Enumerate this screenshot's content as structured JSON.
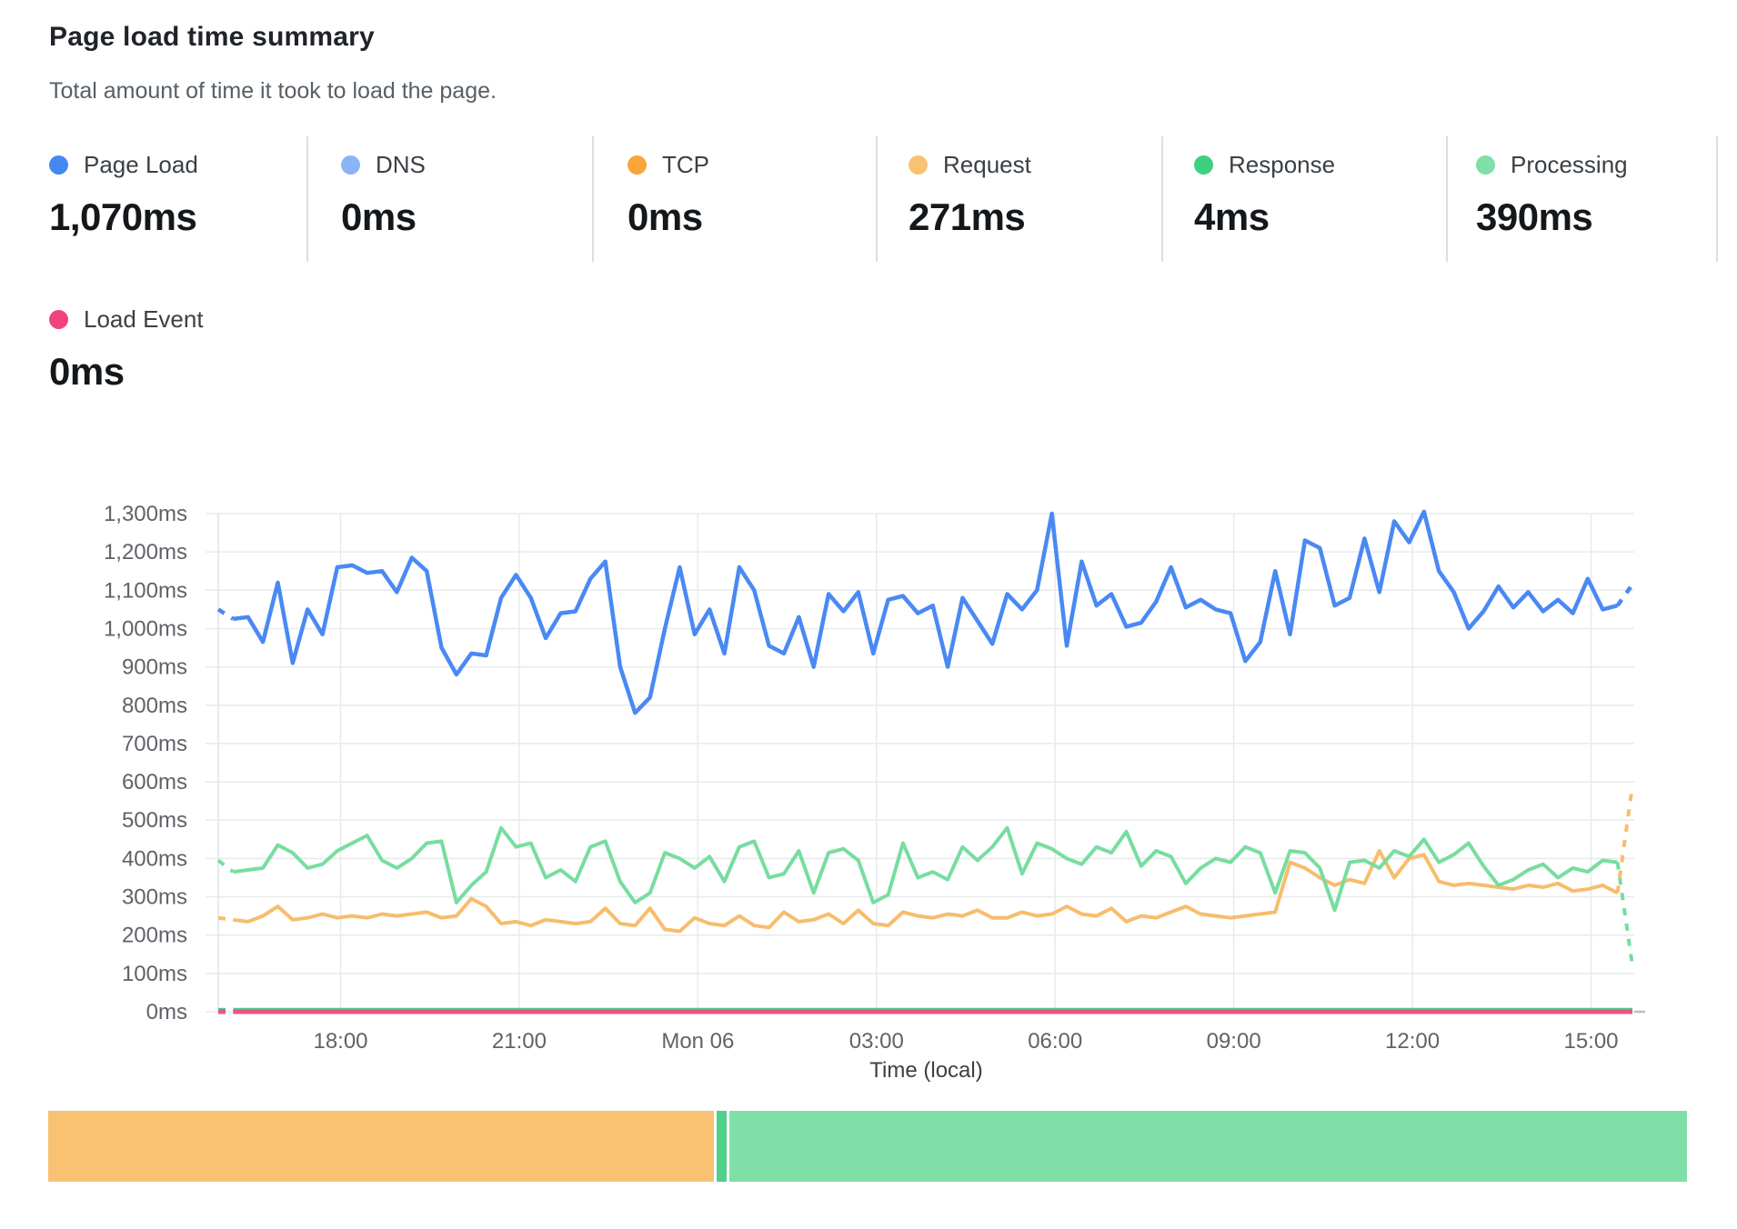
{
  "header": {
    "title": "Page load time summary",
    "subtitle": "Total amount of time it took to load the page."
  },
  "stats": [
    {
      "id": "page_load",
      "label": "Page Load",
      "value": "1,070ms",
      "color": "#4688F1"
    },
    {
      "id": "dns",
      "label": "DNS",
      "value": "0ms",
      "color": "#8AB4F8"
    },
    {
      "id": "tcp",
      "label": "TCP",
      "value": "0ms",
      "color": "#F9A53C"
    },
    {
      "id": "request",
      "label": "Request",
      "value": "271ms",
      "color": "#F8C272"
    },
    {
      "id": "response",
      "label": "Response",
      "value": "4ms",
      "color": "#3DD17F"
    },
    {
      "id": "processing",
      "label": "Processing",
      "value": "390ms",
      "color": "#7FDFA6"
    },
    {
      "id": "load_event",
      "label": "Load Event",
      "value": "0ms",
      "color": "#F2437F"
    }
  ],
  "chart_data": {
    "type": "line",
    "title": "Page load time summary",
    "xlabel": "Time (local)",
    "ylabel": "",
    "ylim": [
      0,
      1300
    ],
    "grid": true,
    "legend_position": "top-stats-row",
    "points": 96,
    "y_ticks": [
      "0ms",
      "100ms",
      "200ms",
      "300ms",
      "400ms",
      "500ms",
      "600ms",
      "700ms",
      "800ms",
      "900ms",
      "1,000ms",
      "1,100ms",
      "1,200ms",
      "1,300ms"
    ],
    "x_ticks": [
      "18:00",
      "21:00",
      "Mon 06",
      "03:00",
      "06:00",
      "09:00",
      "12:00",
      "15:00"
    ],
    "series": [
      {
        "id": "dns",
        "name": "DNS",
        "color": "#8AB4F8",
        "width": 4,
        "flat_value": 0,
        "dashed_head": true,
        "dashed_tail": false
      },
      {
        "id": "tcp",
        "name": "TCP",
        "color": "#F9A53C",
        "width": 4,
        "flat_value": 0,
        "dashed_head": true,
        "dashed_tail": false
      },
      {
        "id": "response",
        "name": "Response",
        "color": "#47D086",
        "width": 5,
        "flat_value": 4,
        "dashed_head": true,
        "dashed_tail": false
      },
      {
        "id": "load_event",
        "name": "Load Event",
        "color": "#E95489",
        "width": 5,
        "flat_value": 0,
        "dashed_head": true,
        "dashed_tail": false
      },
      {
        "id": "request",
        "name": "Request",
        "color": "#F7BD6C",
        "width": 4,
        "dashed_head": true,
        "dashed_tail": true,
        "values": [
          245,
          240,
          235,
          250,
          275,
          240,
          245,
          255,
          245,
          250,
          245,
          255,
          250,
          255,
          260,
          245,
          250,
          295,
          275,
          230,
          235,
          225,
          240,
          235,
          230,
          235,
          270,
          230,
          225,
          270,
          215,
          210,
          245,
          230,
          225,
          250,
          225,
          220,
          260,
          235,
          240,
          255,
          230,
          265,
          230,
          225,
          260,
          250,
          245,
          255,
          250,
          265,
          245,
          245,
          260,
          250,
          255,
          275,
          255,
          250,
          270,
          235,
          250,
          245,
          260,
          275,
          255,
          250,
          245,
          250,
          255,
          260,
          390,
          375,
          350,
          330,
          345,
          335,
          420,
          350,
          400,
          410,
          340,
          330,
          335,
          330,
          325,
          320,
          330,
          325,
          335,
          315,
          320,
          330,
          310,
          590
        ]
      },
      {
        "id": "processing",
        "name": "Processing",
        "color": "#77DDA0",
        "width": 4,
        "dashed_head": true,
        "dashed_tail": true,
        "values": [
          395,
          365,
          370,
          375,
          435,
          415,
          375,
          385,
          420,
          440,
          460,
          395,
          375,
          400,
          440,
          445,
          285,
          330,
          365,
          480,
          430,
          440,
          350,
          370,
          340,
          430,
          445,
          340,
          285,
          310,
          415,
          400,
          375,
          405,
          340,
          430,
          445,
          350,
          360,
          420,
          310,
          415,
          425,
          395,
          285,
          305,
          440,
          350,
          365,
          345,
          430,
          395,
          430,
          480,
          360,
          440,
          425,
          400,
          385,
          430,
          415,
          470,
          380,
          420,
          405,
          335,
          375,
          400,
          390,
          430,
          415,
          310,
          420,
          415,
          375,
          265,
          390,
          395,
          375,
          420,
          405,
          450,
          390,
          410,
          440,
          380,
          330,
          345,
          370,
          385,
          350,
          375,
          365,
          395,
          390,
          120
        ]
      },
      {
        "id": "page_load",
        "name": "Page Load",
        "color": "#4A89F3",
        "width": 4.5,
        "dashed_head": true,
        "dashed_tail": true,
        "values": [
          1050,
          1025,
          1030,
          965,
          1120,
          910,
          1050,
          985,
          1160,
          1165,
          1145,
          1150,
          1095,
          1185,
          1150,
          950,
          880,
          935,
          930,
          1080,
          1140,
          1080,
          975,
          1040,
          1045,
          1130,
          1175,
          900,
          780,
          820,
          1000,
          1160,
          985,
          1050,
          935,
          1160,
          1100,
          955,
          935,
          1030,
          900,
          1090,
          1045,
          1095,
          935,
          1075,
          1085,
          1040,
          1060,
          900,
          1080,
          1020,
          960,
          1090,
          1050,
          1100,
          1300,
          955,
          1175,
          1060,
          1090,
          1005,
          1015,
          1070,
          1160,
          1055,
          1075,
          1050,
          1040,
          915,
          965,
          1150,
          985,
          1230,
          1210,
          1060,
          1080,
          1235,
          1095,
          1280,
          1225,
          1305,
          1150,
          1095,
          1000,
          1045,
          1110,
          1055,
          1095,
          1045,
          1075,
          1040,
          1130,
          1050,
          1060,
          1115
        ]
      }
    ]
  },
  "breakdown_bar": {
    "segments": [
      {
        "id": "request",
        "label": "Request",
        "ms": 271,
        "color": "#F8C272"
      },
      {
        "id": "response",
        "label": "Response",
        "ms": 4,
        "color": "#4FD189"
      },
      {
        "id": "processing",
        "label": "Processing",
        "ms": 390,
        "color": "#7FDFA6"
      }
    ]
  }
}
